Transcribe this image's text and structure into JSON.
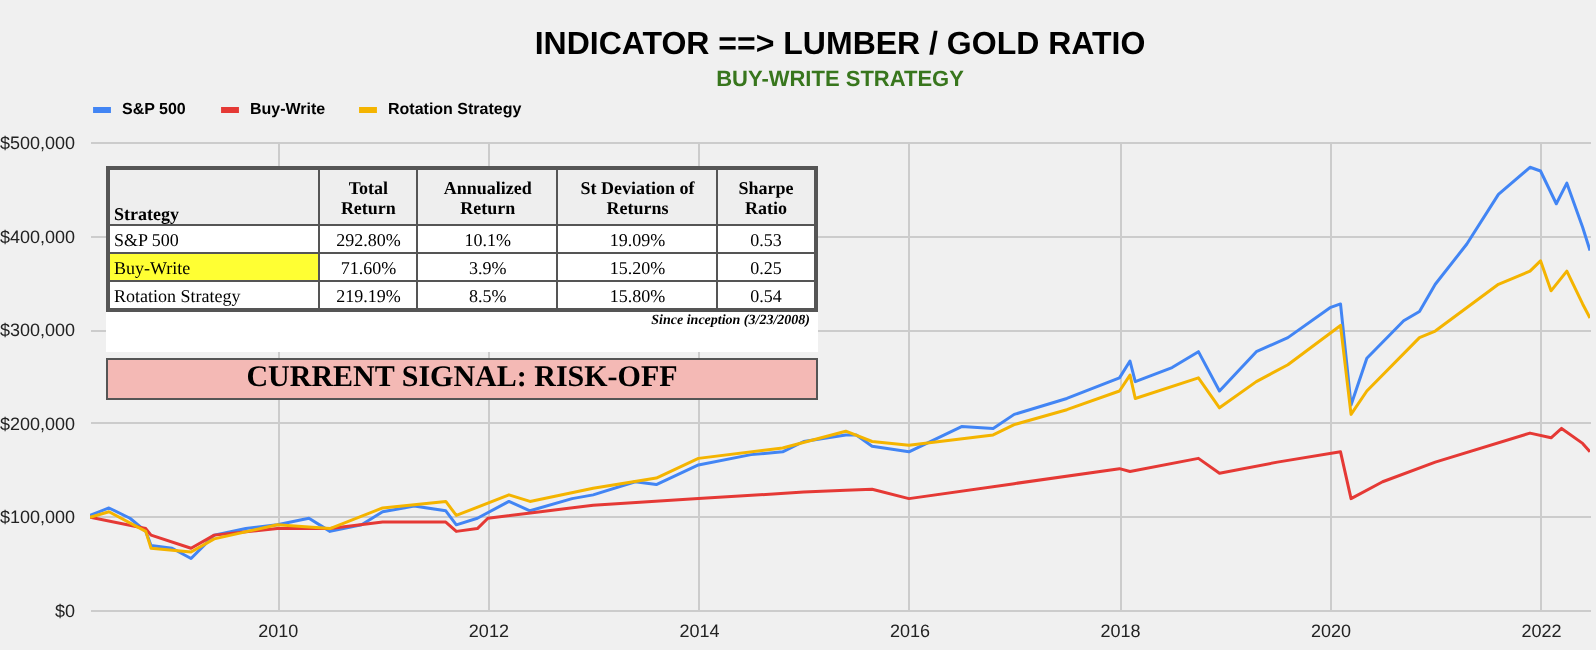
{
  "chart_data": {
    "type": "line",
    "title": "INDICATOR ==> LUMBER / GOLD RATIO",
    "subtitle": "BUY-WRITE STRATEGY",
    "xlim": [
      2008.22,
      2022.47
    ],
    "xticks": [
      2010,
      2012,
      2014,
      2016,
      2018,
      2020,
      2022
    ],
    "ylim": [
      0,
      500000
    ],
    "yticks": [
      {
        "value": 0,
        "label": "$0"
      },
      {
        "value": 100000,
        "label": "$100,000"
      },
      {
        "value": 200000,
        "label": "$200,000"
      },
      {
        "value": 300000,
        "label": "$300,000"
      },
      {
        "value": 400000,
        "label": "$400,000"
      },
      {
        "value": 500000,
        "label": "$500,000"
      }
    ],
    "grid": true,
    "legend": "top",
    "series": [
      {
        "name": "S&P 500",
        "color": "#4285f4",
        "x": [
          2008.22,
          2008.4,
          2008.6,
          2008.75,
          2008.8,
          2009.0,
          2009.18,
          2009.4,
          2009.7,
          2010.0,
          2010.3,
          2010.5,
          2010.8,
          2011.0,
          2011.3,
          2011.6,
          2011.7,
          2011.9,
          2012.2,
          2012.4,
          2012.8,
          2013.0,
          2013.4,
          2013.6,
          2014.0,
          2014.5,
          2014.8,
          2015.0,
          2015.4,
          2015.5,
          2015.65,
          2016.0,
          2016.5,
          2016.8,
          2017.0,
          2017.5,
          2018.0,
          2018.1,
          2018.15,
          2018.5,
          2018.75,
          2018.95,
          2019.3,
          2019.6,
          2020.0,
          2020.1,
          2020.2,
          2020.35,
          2020.7,
          2020.85,
          2021.0,
          2021.3,
          2021.6,
          2021.9,
          2022.0,
          2022.15,
          2022.25,
          2022.4,
          2022.47
        ],
        "values": [
          101000,
          109000,
          98000,
          84000,
          69000,
          66000,
          55000,
          80000,
          87000,
          91000,
          98000,
          84000,
          91000,
          105000,
          111000,
          106000,
          91000,
          98000,
          116000,
          106000,
          119000,
          123000,
          137000,
          134000,
          155000,
          166000,
          169000,
          180000,
          187000,
          187000,
          175000,
          169000,
          196000,
          194000,
          209000,
          226000,
          248000,
          266000,
          244000,
          259000,
          276000,
          234000,
          276000,
          291000,
          323000,
          327000,
          219000,
          269000,
          309000,
          319000,
          348000,
          391000,
          444000,
          473000,
          469000,
          434000,
          456000,
          409000,
          384000
        ]
      },
      {
        "name": "Buy-Write",
        "color": "#e53935",
        "x": [
          2008.22,
          2008.75,
          2008.8,
          2009.18,
          2009.4,
          2010.0,
          2010.5,
          2011.0,
          2011.6,
          2011.7,
          2011.9,
          2012.0,
          2012.5,
          2013.0,
          2014.0,
          2015.0,
          2015.4,
          2015.65,
          2016.0,
          2017.0,
          2018.0,
          2018.1,
          2018.75,
          2018.95,
          2019.5,
          2020.1,
          2020.2,
          2020.5,
          2021.0,
          2021.9,
          2022.1,
          2022.2,
          2022.4,
          2022.47
        ],
        "values": [
          99000,
          87000,
          80000,
          66000,
          80000,
          87000,
          87000,
          94000,
          94000,
          84000,
          87000,
          98000,
          105000,
          112000,
          119000,
          126000,
          128000,
          129000,
          119000,
          135000,
          151000,
          148000,
          162000,
          146000,
          158000,
          169000,
          119000,
          137000,
          158000,
          189000,
          184000,
          194000,
          178000,
          169000
        ]
      },
      {
        "name": "Rotation Strategy",
        "color": "#f4b400",
        "x": [
          2008.22,
          2008.4,
          2008.75,
          2008.8,
          2009.18,
          2009.4,
          2010.0,
          2010.5,
          2011.0,
          2011.6,
          2011.7,
          2012.2,
          2012.4,
          2013.0,
          2013.6,
          2014.0,
          2014.8,
          2015.4,
          2015.65,
          2016.0,
          2016.8,
          2017.0,
          2017.5,
          2018.0,
          2018.1,
          2018.15,
          2018.75,
          2018.95,
          2019.3,
          2019.6,
          2020.1,
          2020.2,
          2020.35,
          2020.85,
          2021.0,
          2021.6,
          2021.9,
          2022.0,
          2022.1,
          2022.25,
          2022.4,
          2022.47
        ],
        "values": [
          99000,
          105000,
          84000,
          66000,
          62000,
          76000,
          91000,
          87000,
          109000,
          116000,
          101000,
          123000,
          116000,
          130000,
          141000,
          162000,
          173000,
          191000,
          180000,
          176000,
          187000,
          198000,
          214000,
          234000,
          251000,
          226000,
          248000,
          216000,
          244000,
          262000,
          304000,
          209000,
          234000,
          291000,
          298000,
          348000,
          362000,
          373000,
          341000,
          362000,
          327000,
          312000
        ]
      }
    ],
    "annotations": [
      "Strategy",
      "Total Return",
      "Annualized Return",
      "St Deviation of Returns",
      "Sharpe Ratio",
      "S&P 500",
      "292.80%",
      "10.1%",
      "19.09%",
      "0.53",
      "Buy-Write",
      "71.60%",
      "3.9%",
      "15.20%",
      "0.25",
      "Rotation Strategy",
      "219.19%",
      "8.5%",
      "15.80%",
      "0.54",
      "Since inception (3/23/2008)",
      "CURRENT SIGNAL: RISK-OFF"
    ]
  }
}
